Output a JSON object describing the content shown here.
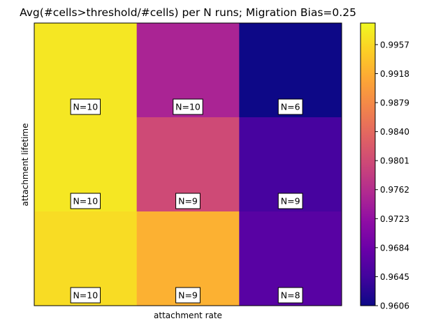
{
  "chart_data": {
    "type": "heatmap",
    "title": "Avg(#cells>threshold/#cells) per N runs; Migration Bias=0.25",
    "xlabel": "attachment rate",
    "ylabel": "attachment lifetime",
    "colormap": "plasma",
    "vmin": 0.9606,
    "vmax": 0.9986,
    "rows": [
      {
        "values": [
          0.997,
          0.975,
          0.9606
        ],
        "labels": [
          "N=10",
          "N=10",
          "N=6"
        ]
      },
      {
        "values": [
          0.997,
          0.98,
          0.965
        ],
        "labels": [
          "N=10",
          "N=9",
          "N=9"
        ]
      },
      {
        "values": [
          0.996,
          0.992,
          0.9665
        ],
        "labels": [
          "N=10",
          "N=9",
          "N=8"
        ]
      }
    ],
    "colorbar_ticks": [
      "0.9606",
      "0.9645",
      "0.9684",
      "0.9723",
      "0.9762",
      "0.9801",
      "0.9840",
      "0.9879",
      "0.9918",
      "0.9957"
    ]
  }
}
